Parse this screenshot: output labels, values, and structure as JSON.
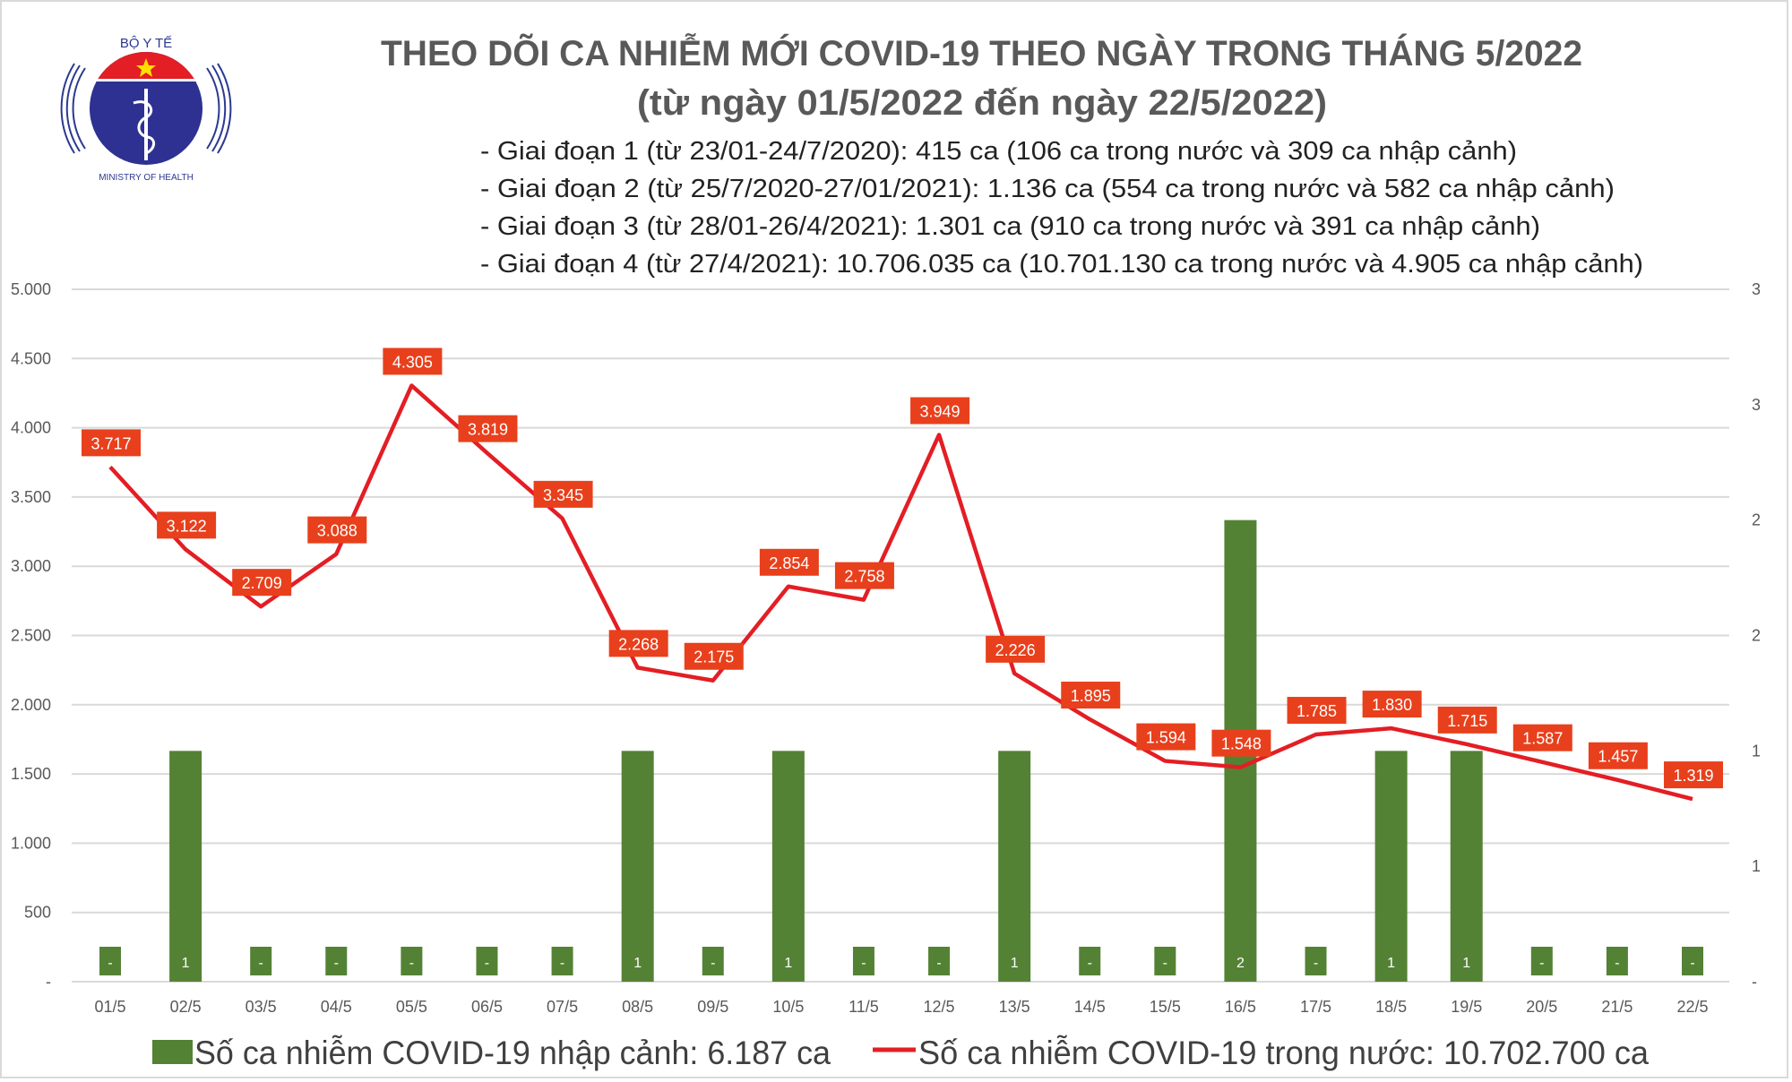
{
  "logo": {
    "top_text": "BỘ Y TẾ",
    "bottom_text": "MINISTRY OF HEALTH"
  },
  "header": {
    "title": "THEO DÕI CA NHIỄM MỚI COVID-19 THEO NGÀY TRONG THÁNG 5/2022",
    "subtitle": "(từ ngày 01/5/2022 đến ngày 22/5/2022)",
    "notes": [
      "- Giai đoạn 1 (từ 23/01-24/7/2020): 415 ca (106 ca trong nước và 309 ca nhập cảnh)",
      "- Giai đoạn 2 (từ 25/7/2020-27/01/2021): 1.136 ca (554 ca trong nước và 582 ca nhập cảnh)",
      "- Giai đoạn 3 (từ 28/01-26/4/2021): 1.301 ca (910 ca trong nước và 391 ca nhập cảnh)",
      "- Giai đoạn 4 (từ 27/4/2021): 10.706.035 ca (10.701.130 ca trong nước và 4.905 ca nhập cảnh)"
    ]
  },
  "chart_data": {
    "type": "bar+line",
    "categories": [
      "01/5",
      "02/5",
      "03/5",
      "04/5",
      "05/5",
      "06/5",
      "07/5",
      "08/5",
      "09/5",
      "10/5",
      "11/5",
      "12/5",
      "13/5",
      "14/5",
      "15/5",
      "16/5",
      "17/5",
      "18/5",
      "19/5",
      "20/5",
      "21/5",
      "22/5"
    ],
    "series": [
      {
        "name": "Số ca nhiễm COVID-19 nhập cảnh: 6.187 ca",
        "type": "bar",
        "axis": "right",
        "color": "#548235",
        "values": [
          0,
          1,
          0,
          0,
          0,
          0,
          0,
          1,
          0,
          1,
          0,
          0,
          1,
          0,
          0,
          2,
          0,
          1,
          1,
          0,
          0,
          0
        ],
        "labels": [
          "-",
          "1",
          "-",
          "-",
          "-",
          "-",
          "-",
          "1",
          "-",
          "1",
          "-",
          "-",
          "1",
          "-",
          "-",
          "2",
          "-",
          "1",
          "1",
          "-",
          "-",
          "-"
        ]
      },
      {
        "name": "Số ca nhiễm COVID-19 trong nước: 10.702.700 ca",
        "type": "line",
        "axis": "left",
        "color": "#e31e24",
        "values": [
          3717,
          3122,
          2709,
          3088,
          4305,
          3819,
          3345,
          2268,
          2175,
          2854,
          2758,
          3949,
          2226,
          1895,
          1594,
          1548,
          1785,
          1830,
          1715,
          1587,
          1457,
          1319
        ],
        "labels": [
          "3.717",
          "3.122",
          "2.709",
          "3.088",
          "4.305",
          "3.819",
          "3.345",
          "2.268",
          "2.175",
          "2.854",
          "2.758",
          "3.949",
          "2.226",
          "1.895",
          "1.594",
          "1.548",
          "1.785",
          "1.830",
          "1.715",
          "1.587",
          "1.457",
          "1.319"
        ]
      }
    ],
    "left_axis": {
      "ylim": [
        0,
        5000
      ],
      "ticks": [
        "-",
        "500",
        "1.000",
        "1.500",
        "2.000",
        "2.500",
        "3.000",
        "3.500",
        "4.000",
        "4.500",
        "5.000"
      ]
    },
    "right_axis": {
      "ylim": [
        0,
        3
      ],
      "ticks": [
        "-",
        "1",
        "1",
        "2",
        "2",
        "3",
        "3"
      ]
    },
    "label_color": "#e8401c",
    "grid": true,
    "legend_position": "bottom"
  }
}
